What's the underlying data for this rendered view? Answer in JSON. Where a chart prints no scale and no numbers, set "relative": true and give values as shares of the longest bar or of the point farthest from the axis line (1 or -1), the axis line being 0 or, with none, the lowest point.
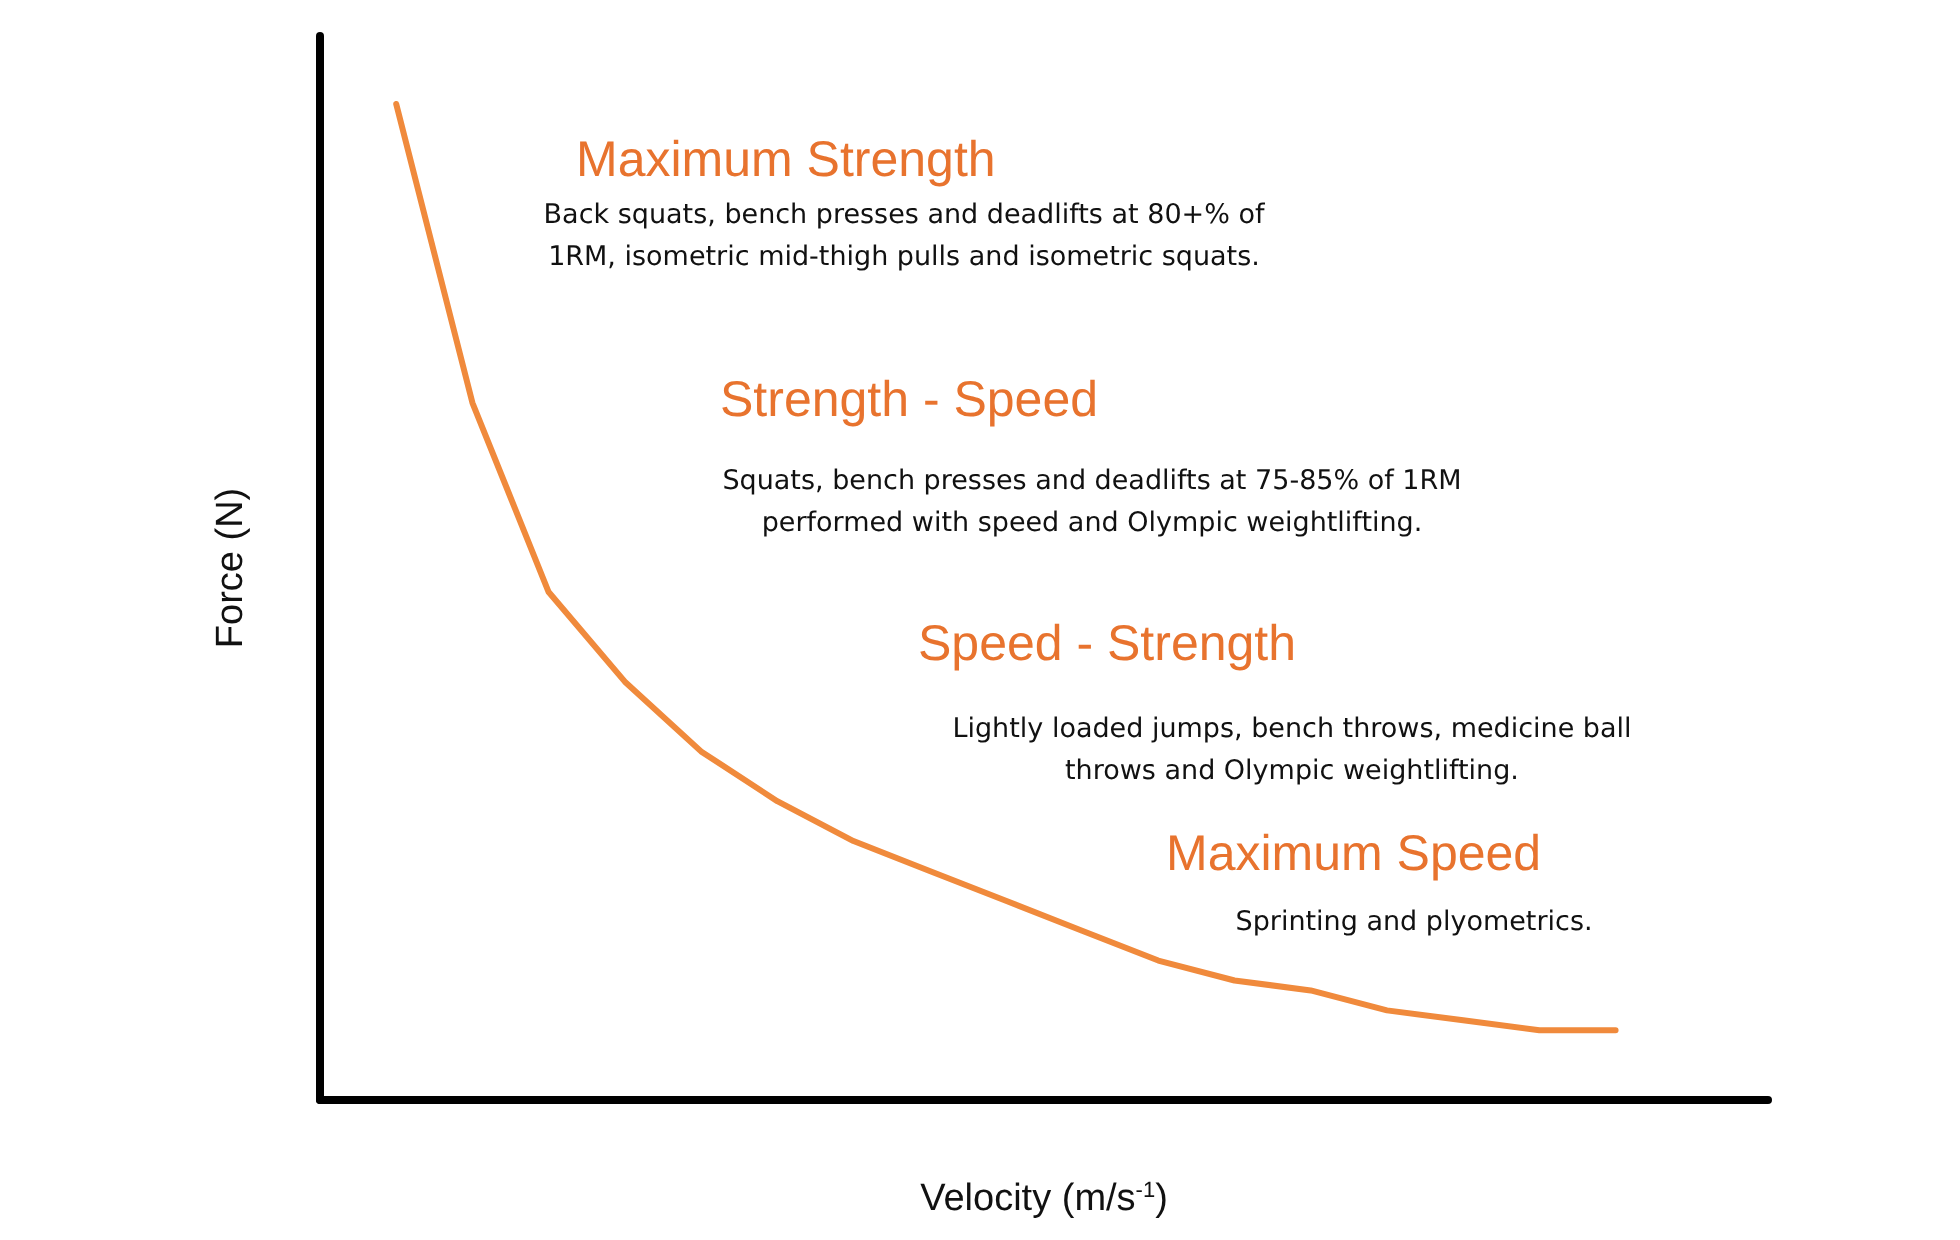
{
  "chart_data": {
    "type": "line",
    "relative": true,
    "xlabel": "Velocity (m/s$^{-1}$)",
    "ylabel": "Force (N)",
    "categories": [
      null,
      null,
      null,
      null,
      null,
      null,
      null,
      null,
      null,
      null,
      null,
      null,
      null,
      null,
      null,
      null,
      null,
      null,
      null,
      null
    ],
    "series": [
      {
        "color": "#f08a3c",
        "values": [
          null,
          1,
          0.7,
          0.51,
          0.42,
          0.35,
          0.3,
          0.26,
          0.23,
          0.2,
          0.17,
          0.14,
          0.12,
          0.11,
          0.09,
          0.08,
          0.07,
          0.07,
          null,
          null
        ]
      }
    ],
    "marker": "none",
    "line_style": "solid",
    "grid": false,
    "annotations": [
      "Maximum Strength",
      "Back squats, bench presses and deadlifts at 80+% of\n1RM, isometric mid-thigh pulls and isometric squats.",
      "Strength - Speed",
      "Squats, bench presses and deadlifts at 75-85% of 1RM\nperformed with speed and Olympic weightlifting.",
      "Speed - Strength",
      "Lightly loaded jumps, bench throws, medicine ball\nthrows and Olympic weightlifting.",
      "Maximum Speed",
      "Sprinting and plyometrics."
    ]
  }
}
